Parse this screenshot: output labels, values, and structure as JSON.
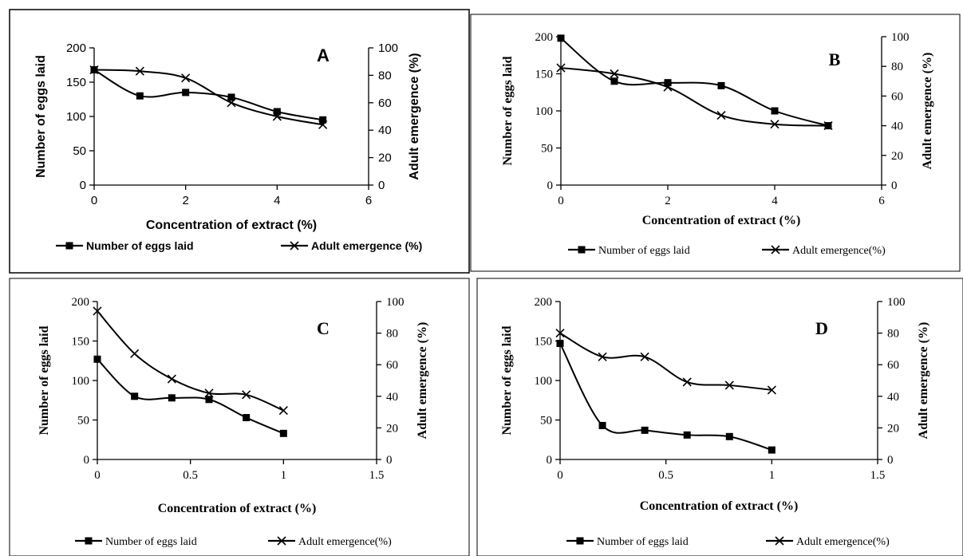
{
  "chart_data": [
    {
      "type": "line",
      "panel_label": "A",
      "xlabel": "Concentration of extract (%)",
      "ylabel": "Number of eggs laid",
      "y2label": "Adult emergence (%)",
      "xlim": [
        0,
        6
      ],
      "xticks": [
        0,
        2,
        4,
        6
      ],
      "ylim": [
        0,
        200
      ],
      "yticks": [
        0,
        50,
        100,
        150,
        200
      ],
      "y2lim": [
        0,
        100
      ],
      "y2ticks": [
        0,
        20,
        40,
        60,
        80,
        100
      ],
      "series": [
        {
          "name": "Number of eggs laid",
          "axis": "left",
          "marker": "square",
          "x": [
            0,
            1,
            2,
            3,
            4,
            5
          ],
          "values": [
            168,
            130,
            135,
            128,
            107,
            95
          ]
        },
        {
          "name": "Adult emergence (%)",
          "axis": "right",
          "marker": "x",
          "x": [
            0,
            1,
            2,
            3,
            4,
            5
          ],
          "values": [
            84,
            83,
            78,
            60,
            50,
            44
          ]
        }
      ],
      "legend": "bottom",
      "grid": false
    },
    {
      "type": "line",
      "panel_label": "B",
      "xlabel": "Concentration of extract (%)",
      "ylabel": "Number of eggs laid",
      "y2label": "Adult emergence (%)",
      "xlim": [
        0,
        6
      ],
      "xticks": [
        0,
        2,
        4,
        6
      ],
      "ylim": [
        0,
        200
      ],
      "yticks": [
        0,
        50,
        100,
        150,
        200
      ],
      "y2lim": [
        0,
        100
      ],
      "y2ticks": [
        0,
        20,
        40,
        60,
        80,
        100
      ],
      "series": [
        {
          "name": "Number of eggs laid",
          "axis": "left",
          "marker": "square",
          "x": [
            0,
            1,
            2,
            3,
            4,
            5
          ],
          "values": [
            198,
            140,
            138,
            134,
            100,
            80
          ]
        },
        {
          "name": "Adult emergence(%)",
          "axis": "right",
          "marker": "x",
          "x": [
            0,
            1,
            2,
            3,
            4,
            5
          ],
          "values": [
            79,
            75,
            66,
            47,
            41,
            40
          ]
        }
      ],
      "legend": "bottom",
      "grid": false
    },
    {
      "type": "line",
      "panel_label": "C",
      "xlabel": "Concentration of extract (%)",
      "ylabel": "Number of eggs laid",
      "y2label": "Adult emergence (%)",
      "xlim": [
        0,
        1.5
      ],
      "xticks": [
        0,
        0.5,
        1,
        1.5
      ],
      "ylim": [
        0,
        200
      ],
      "yticks": [
        0,
        50,
        100,
        150,
        200
      ],
      "y2lim": [
        0,
        100
      ],
      "y2ticks": [
        0,
        20,
        40,
        60,
        80,
        100
      ],
      "series": [
        {
          "name": "Number of eggs laid",
          "axis": "left",
          "marker": "square",
          "x": [
            0,
            0.2,
            0.4,
            0.6,
            0.8,
            1.0
          ],
          "values": [
            127,
            80,
            78,
            76,
            53,
            33
          ]
        },
        {
          "name": "Adult emergence(%)",
          "axis": "right",
          "marker": "x",
          "x": [
            0,
            0.2,
            0.4,
            0.6,
            0.8,
            1.0
          ],
          "values": [
            94,
            67,
            51,
            42,
            41,
            31
          ]
        }
      ],
      "legend": "bottom",
      "grid": false
    },
    {
      "type": "line",
      "panel_label": "D",
      "xlabel": "Concentration of extract (%)",
      "ylabel": "Number of eggs laid",
      "y2label": "Adult emergence (%)",
      "xlim": [
        0,
        1.5
      ],
      "xticks": [
        0,
        0.5,
        1,
        1.5
      ],
      "ylim": [
        0,
        200
      ],
      "yticks": [
        0,
        50,
        100,
        150,
        200
      ],
      "y2lim": [
        0,
        100
      ],
      "y2ticks": [
        0,
        20,
        40,
        60,
        80,
        100
      ],
      "series": [
        {
          "name": "Number of eggs laid",
          "axis": "left",
          "marker": "square",
          "x": [
            0,
            0.2,
            0.4,
            0.6,
            0.8,
            1.0
          ],
          "values": [
            147,
            43,
            37,
            31,
            29,
            12
          ]
        },
        {
          "name": "Adult emergence(%)",
          "axis": "right",
          "marker": "x",
          "x": [
            0,
            0.2,
            0.4,
            0.6,
            0.8,
            1.0
          ],
          "values": [
            80,
            65,
            65,
            49,
            47,
            44
          ]
        }
      ],
      "legend": "bottom",
      "grid": false
    }
  ]
}
